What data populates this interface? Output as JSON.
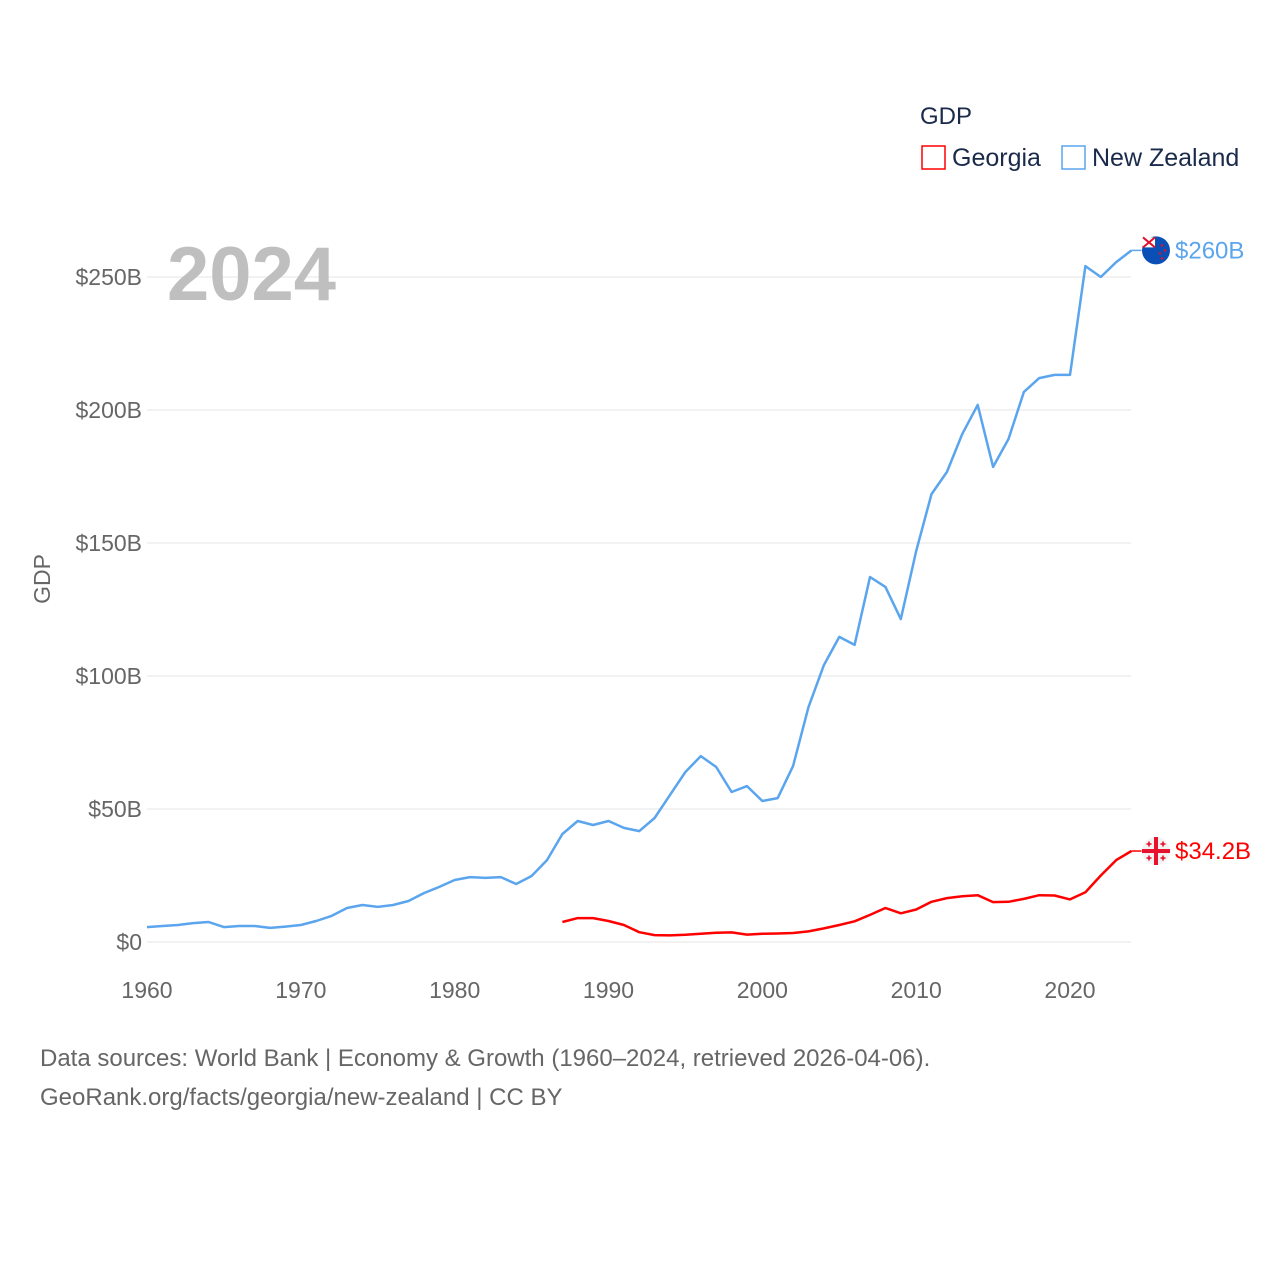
{
  "chart_data": {
    "type": "line",
    "title": "GDP",
    "ylabel": "GDP",
    "xlabel": "",
    "year_label": "2024",
    "xlim": [
      1960,
      2024
    ],
    "ylim": [
      0,
      260
    ],
    "x_ticks": [
      1960,
      1970,
      1980,
      1990,
      2000,
      2010,
      2020
    ],
    "x_tick_labels": [
      "1960",
      "1970",
      "1980",
      "1990",
      "2000",
      "2010",
      "2020"
    ],
    "y_ticks": [
      0,
      50,
      100,
      150,
      200,
      250
    ],
    "y_tick_labels": [
      "$0",
      "$50B",
      "$100B",
      "$150B",
      "$200B",
      "$250B"
    ],
    "grid": true,
    "legend_title": "GDP",
    "legend_position": "top-right",
    "units": "billion USD",
    "series": [
      {
        "name": "Georgia",
        "color": "#ff0000",
        "end_label": "$34.2B",
        "flag": "georgia-flag",
        "start_year": 1987,
        "values": [
          7.5,
          9.0,
          9.0,
          7.9,
          6.4,
          3.7,
          2.6,
          2.5,
          2.7,
          3.1,
          3.5,
          3.6,
          2.8,
          3.1,
          3.2,
          3.4,
          4.0,
          5.1,
          6.4,
          7.8,
          10.2,
          12.8,
          10.8,
          12.2,
          15.1,
          16.5,
          17.2,
          17.6,
          15.0,
          15.1,
          16.2,
          17.6,
          17.5,
          16.0,
          18.7,
          25.0,
          30.8,
          34.2
        ]
      },
      {
        "name": "New Zealand",
        "color": "#5aa5ee",
        "end_label": "$260B",
        "flag": "new-zealand-flag",
        "start_year": 1960,
        "values": [
          5.6,
          6.0,
          6.4,
          7.1,
          7.5,
          5.6,
          6.0,
          6.0,
          5.3,
          5.8,
          6.4,
          7.9,
          9.8,
          12.8,
          13.9,
          13.2,
          13.9,
          15.4,
          18.4,
          20.7,
          23.3,
          24.4,
          24.1,
          24.4,
          21.8,
          24.8,
          30.8,
          40.6,
          45.5,
          44.0,
          45.5,
          42.9,
          41.7,
          46.6,
          55.3,
          63.9,
          69.9,
          65.8,
          56.4,
          58.6,
          53.0,
          54.1,
          66.2,
          88.3,
          104.1,
          114.7,
          111.7,
          137.2,
          133.5,
          121.4,
          147.0,
          168.4,
          176.7,
          191.0,
          201.9,
          178.6,
          189.1,
          206.8,
          212.0,
          213.2,
          213.2,
          254.1,
          250.0,
          255.6,
          260.0
        ]
      }
    ]
  },
  "footer": {
    "line1": "Data sources: World Bank | Economy & Growth (1960–2024, retrieved 2026-04-06).",
    "line2": "GeoRank.org/facts/georgia/new-zealand | CC BY"
  }
}
